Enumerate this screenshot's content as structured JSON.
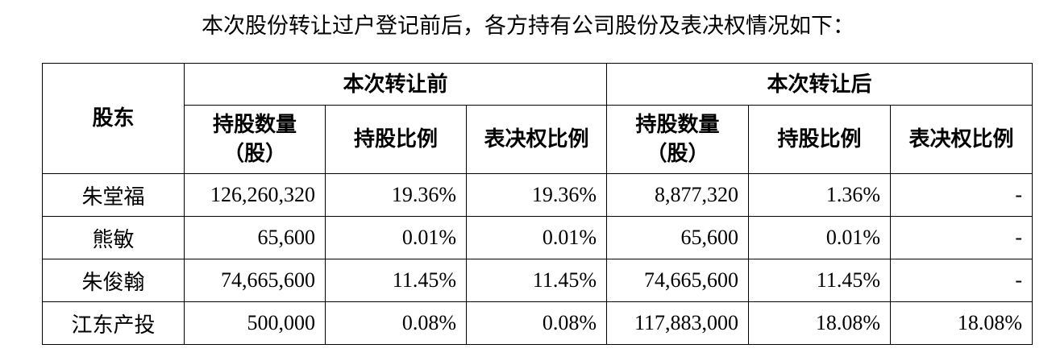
{
  "intro": "本次股份转让过户登记前后，各方持有公司股份及表决权情况如下：",
  "table": {
    "shareholder_header": "股东",
    "groups": [
      "本次转让前",
      "本次转让后"
    ],
    "subheaders": [
      {
        "line1": "持股数量",
        "line2": "（股）"
      },
      {
        "line1": "持股比例"
      },
      {
        "line1": "表决权比例"
      },
      {
        "line1": "持股数量",
        "line2": "（股）"
      },
      {
        "line1": "持股比例"
      },
      {
        "line1": "表决权比例"
      }
    ],
    "rows": [
      [
        "朱堂福",
        "126,260,320",
        "19.36%",
        "19.36%",
        "8,877,320",
        "1.36%",
        "-"
      ],
      [
        "熊敏",
        "65,600",
        "0.01%",
        "0.01%",
        "65,600",
        "0.01%",
        "-"
      ],
      [
        "朱俊翰",
        "74,665,600",
        "11.45%",
        "11.45%",
        "74,665,600",
        "11.45%",
        "-"
      ],
      [
        "江东产投",
        "500,000",
        "0.08%",
        "0.08%",
        "117,883,000",
        "18.08%",
        "18.08%"
      ]
    ]
  }
}
